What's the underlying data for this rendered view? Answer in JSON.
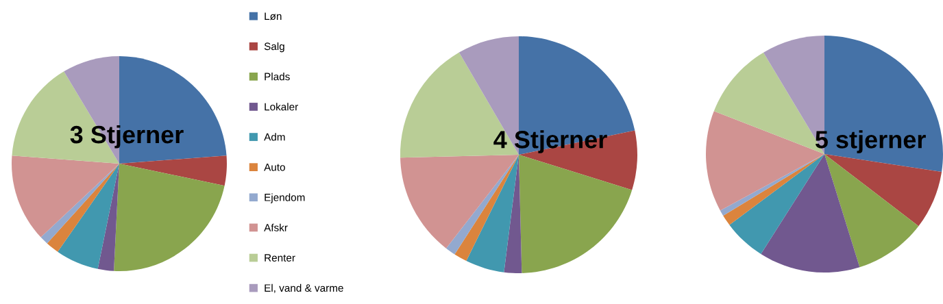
{
  "chart_data": [
    {
      "type": "pie",
      "title": "3 Stjerner",
      "legend": "right",
      "categories": [
        "Løn",
        "Salg",
        "Plads",
        "Lokaler",
        "Adm",
        "Auto",
        "Ejendom",
        "Afskr",
        "Renter",
        "El, vand & varme"
      ],
      "values": [
        23.8,
        4.5,
        22.5,
        2.4,
        6.5,
        2.0,
        1.3,
        13.2,
        15.2,
        8.6
      ],
      "colors": [
        "#4572a7",
        "#aa4643",
        "#89a54e",
        "#71588f",
        "#4198af",
        "#db843d",
        "#93a9cf",
        "#d19392",
        "#b9cd96",
        "#a99bbd"
      ]
    },
    {
      "type": "pie",
      "title": "4 Stjerner",
      "values": [
        21.7,
        8.1,
        19.8,
        2.4,
        5.3,
        1.8,
        1.4,
        14.1,
        17.0,
        8.4
      ],
      "colors": [
        "#4572a7",
        "#aa4643",
        "#89a54e",
        "#71588f",
        "#4198af",
        "#db843d",
        "#93a9cf",
        "#d19392",
        "#b9cd96",
        "#a99bbd"
      ]
    },
    {
      "type": "pie",
      "title": "5 stjerner",
      "values": [
        27.4,
        8.0,
        9.8,
        13.8,
        5.8,
        1.5,
        0.8,
        13.8,
        10.5,
        8.6
      ],
      "colors": [
        "#4572a7",
        "#aa4643",
        "#89a54e",
        "#71588f",
        "#4198af",
        "#db843d",
        "#93a9cf",
        "#d19392",
        "#b9cd96",
        "#a99bbd"
      ]
    }
  ]
}
